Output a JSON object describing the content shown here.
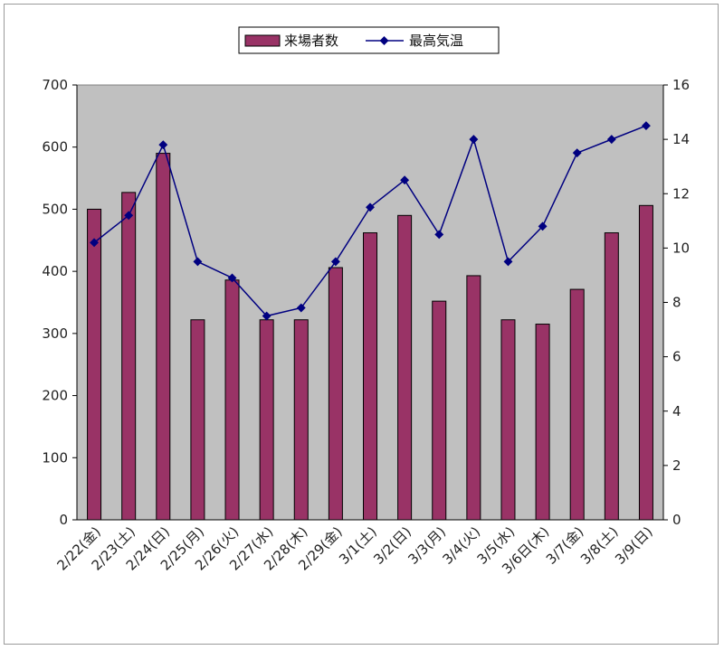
{
  "chart_data": {
    "type": "bar",
    "categories": [
      "2/22(金)",
      "2/23(土)",
      "2/24(日)",
      "2/25(月)",
      "2/26(火)",
      "2/27(水)",
      "2/28(木)",
      "2/29(金)",
      "3/1(土)",
      "3/2(日)",
      "3/3(月)",
      "3/4(火)",
      "3/5(水)",
      "3/6日(木)",
      "3/7(金)",
      "3/8(土)",
      "3/9(日)"
    ],
    "series": [
      {
        "name": "来場者数",
        "type": "bar",
        "axis": "left",
        "color": "#993366",
        "values": [
          500,
          527,
          590,
          322,
          386,
          322,
          322,
          406,
          462,
          490,
          352,
          393,
          322,
          315,
          371,
          462,
          506
        ]
      },
      {
        "name": "最高気温",
        "type": "line",
        "axis": "right",
        "color": "#000080",
        "values": [
          10.2,
          11.2,
          13.8,
          9.5,
          8.9,
          7.5,
          7.8,
          9.5,
          11.5,
          12.5,
          10.5,
          14.0,
          9.5,
          10.8,
          13.5,
          14.0,
          14.5
        ]
      }
    ],
    "y_left": {
      "min": 0,
      "max": 700,
      "ticks": [
        0,
        100,
        200,
        300,
        400,
        500,
        600,
        700
      ]
    },
    "y_right": {
      "min": 0,
      "max": 16,
      "ticks": [
        0,
        2,
        4,
        6,
        8,
        10,
        12,
        14,
        16
      ]
    },
    "plot_background": "#c0c0c0",
    "grid": false,
    "legend_position": "top-center"
  }
}
